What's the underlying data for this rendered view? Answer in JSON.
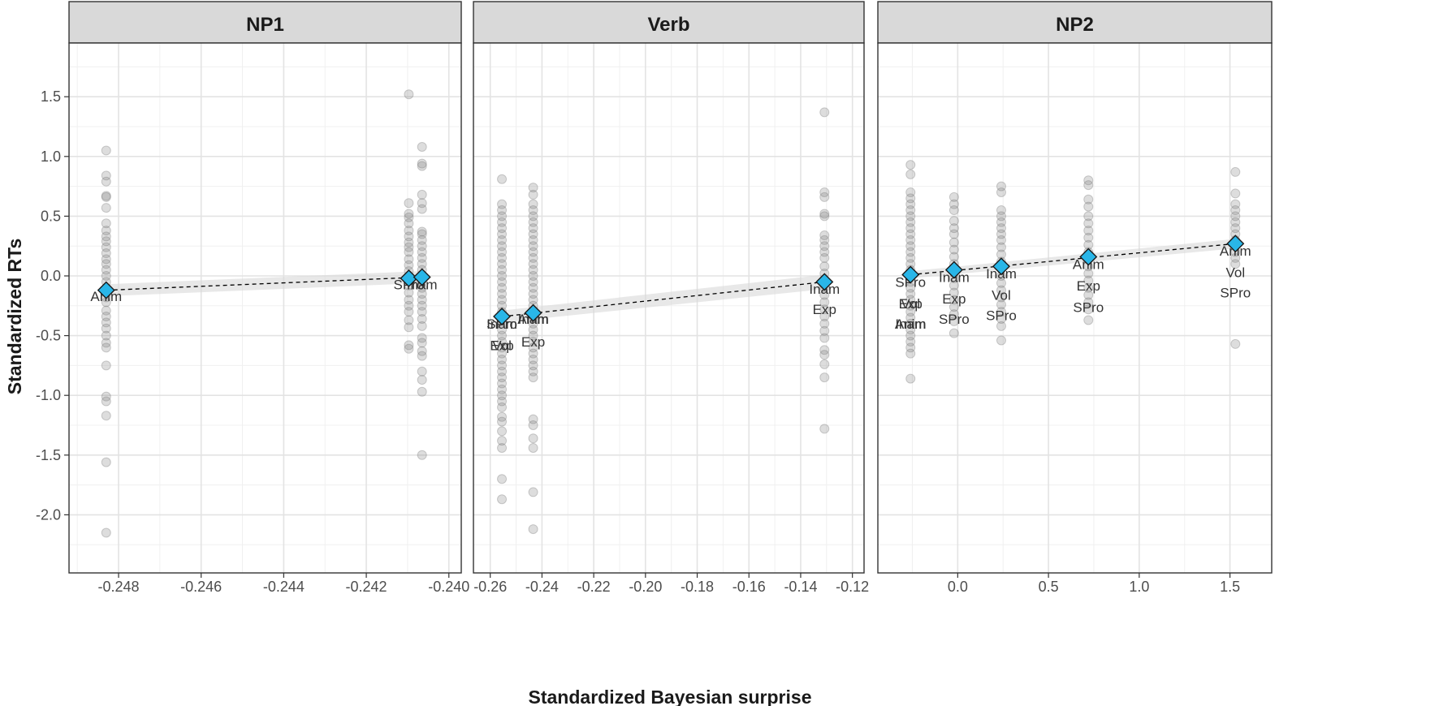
{
  "chart_data": {
    "type": "scatter",
    "ylabel": "Standardized RTs",
    "xlabel": "Standardized Bayesian surprise",
    "ylim": [
      -2.3,
      2.0
    ],
    "yticks": [
      1.5,
      1.0,
      0.5,
      0.0,
      -0.5,
      -1.0,
      -1.5,
      -2.0
    ],
    "ytick_labels": [
      "1.5",
      "1.0",
      "0.5",
      "0.0",
      "-0.5",
      "-1.0",
      "-1.5",
      "-2.0"
    ],
    "colors": {
      "mean_marker": "#29b6e8",
      "points": "#777777",
      "ribbon": "#d9d9d9",
      "strip": "#d9d9d9"
    },
    "panels": [
      {
        "title": "NP1",
        "xlim": [
          -0.2492,
          -0.2397
        ],
        "xticks": [
          -0.248,
          -0.246,
          -0.244,
          -0.242,
          -0.24
        ],
        "xtick_labels": [
          "-0.248",
          "-0.246",
          "-0.244",
          "-0.242",
          "-0.240"
        ],
        "fit": {
          "x": [
            -0.2483,
            -0.24065
          ],
          "y": [
            -0.12,
            -0.01
          ],
          "band": [
            0.05,
            0.05
          ]
        },
        "groups": [
          {
            "x": -0.2483,
            "mean": -0.12,
            "labels": [
              [
                "Anim",
                -0.17
              ]
            ],
            "points": [
              1.05,
              0.84,
              0.79,
              0.67,
              0.66,
              0.57,
              0.44,
              0.38,
              0.33,
              0.29,
              0.24,
              0.19,
              0.14,
              0.1,
              0.05,
              0.0,
              -0.05,
              -0.1,
              -0.18,
              -0.22,
              -0.29,
              -0.34,
              -0.39,
              -0.44,
              -0.5,
              -0.56,
              -0.6,
              -0.75,
              -1.01,
              -1.05,
              -1.17,
              -1.56,
              -2.15
            ]
          },
          {
            "x": -0.24097,
            "mean": -0.02,
            "labels": [
              [
                "SPro",
                -0.07
              ]
            ],
            "points": [
              1.52,
              0.61,
              0.52,
              0.49,
              0.44,
              0.38,
              0.33,
              0.28,
              0.24,
              0.2,
              0.14,
              0.09,
              0.04,
              -0.02,
              -0.08,
              -0.14,
              -0.2,
              -0.25,
              -0.3,
              -0.37,
              -0.43,
              -0.58,
              -0.61
            ]
          },
          {
            "x": -0.24065,
            "mean": -0.01,
            "labels": [
              [
                "Inam",
                -0.07
              ]
            ],
            "points": [
              1.08,
              0.94,
              0.92,
              0.68,
              0.61,
              0.56,
              0.37,
              0.35,
              0.3,
              0.25,
              0.2,
              0.15,
              0.1,
              0.05,
              0.0,
              -0.05,
              -0.1,
              -0.15,
              -0.2,
              -0.25,
              -0.3,
              -0.36,
              -0.42,
              -0.52,
              -0.56,
              -0.63,
              -0.67,
              -0.8,
              -0.87,
              -0.97,
              -1.5
            ]
          }
        ]
      },
      {
        "title": "Verb",
        "xlim": [
          -0.2665,
          -0.1155
        ],
        "xticks": [
          -0.26,
          -0.24,
          -0.22,
          -0.2,
          -0.18,
          -0.16,
          -0.14,
          -0.12
        ],
        "xtick_labels": [
          "-0.26",
          "-0.24",
          "-0.22",
          "-0.20",
          "-0.18",
          "-0.16",
          "-0.14",
          "-0.12"
        ],
        "fit": {
          "x": [
            -0.2555,
            -0.1308
          ],
          "y": [
            -0.34,
            -0.05
          ],
          "band": [
            0.05,
            0.06
          ]
        },
        "groups": [
          {
            "x": -0.2555,
            "mean": -0.34,
            "labels": [
              [
                "SPro",
                -0.4
              ],
              [
                "Inam",
                -0.4
              ],
              [
                "Exp",
                -0.58
              ],
              [
                "Vol",
                -0.58
              ]
            ],
            "points": [
              0.81,
              0.6,
              0.55,
              0.5,
              0.45,
              0.4,
              0.35,
              0.3,
              0.25,
              0.2,
              0.15,
              0.1,
              0.05,
              0.0,
              -0.05,
              -0.1,
              -0.15,
              -0.2,
              -0.25,
              -0.3,
              -0.35,
              -0.4,
              -0.45,
              -0.5,
              -0.55,
              -0.6,
              -0.65,
              -0.7,
              -0.75,
              -0.8,
              -0.85,
              -0.9,
              -0.95,
              -1.0,
              -1.05,
              -1.1,
              -1.18,
              -1.22,
              -1.3,
              -1.38,
              -1.44,
              -1.7,
              -1.87
            ]
          },
          {
            "x": -0.2434,
            "mean": -0.31,
            "labels": [
              [
                "Anim",
                -0.36
              ],
              [
                "Inam",
                -0.36
              ],
              [
                "Exp",
                -0.55
              ]
            ],
            "points": [
              0.74,
              0.68,
              0.6,
              0.55,
              0.5,
              0.45,
              0.4,
              0.35,
              0.3,
              0.25,
              0.2,
              0.15,
              0.1,
              0.05,
              0.0,
              -0.05,
              -0.1,
              -0.15,
              -0.2,
              -0.25,
              -0.3,
              -0.35,
              -0.4,
              -0.45,
              -0.5,
              -0.55,
              -0.6,
              -0.65,
              -0.7,
              -0.75,
              -0.8,
              -0.85,
              -1.2,
              -1.25,
              -1.36,
              -1.44,
              -1.81,
              -2.12
            ]
          },
          {
            "x": -0.1308,
            "mean": -0.05,
            "labels": [
              [
                "Inam",
                -0.11
              ],
              [
                "Exp",
                -0.28
              ]
            ],
            "points": [
              1.37,
              0.7,
              0.66,
              0.52,
              0.5,
              0.34,
              0.3,
              0.25,
              0.2,
              0.15,
              0.08,
              0.02,
              -0.04,
              -0.1,
              -0.16,
              -0.22,
              -0.28,
              -0.34,
              -0.4,
              -0.46,
              -0.52,
              -0.62,
              -0.66,
              -0.74,
              -0.85,
              -1.28
            ]
          }
        ]
      },
      {
        "title": "NP2",
        "xlim": [
          -0.44,
          1.73
        ],
        "xticks": [
          0.0,
          0.5,
          1.0,
          1.5
        ],
        "xtick_labels": [
          "0.0",
          "0.5",
          "1.0",
          "1.5"
        ],
        "fit": {
          "x": [
            -0.26,
            1.53
          ],
          "y": [
            0.01,
            0.27
          ],
          "band": [
            0.03,
            0.04
          ]
        },
        "groups": [
          {
            "x": -0.26,
            "mean": 0.01,
            "labels": [
              [
                "SPro",
                -0.05
              ],
              [
                "Exp",
                -0.23
              ],
              [
                "Vol",
                -0.23
              ],
              [
                "Anim",
                -0.4
              ],
              [
                "Inam",
                -0.4
              ]
            ],
            "points": [
              0.93,
              0.85,
              0.7,
              0.65,
              0.6,
              0.55,
              0.5,
              0.45,
              0.4,
              0.35,
              0.3,
              0.25,
              0.2,
              0.15,
              0.1,
              0.05,
              0.0,
              -0.05,
              -0.1,
              -0.15,
              -0.2,
              -0.25,
              -0.3,
              -0.35,
              -0.4,
              -0.45,
              -0.5,
              -0.55,
              -0.6,
              -0.65,
              -0.86
            ]
          },
          {
            "x": -0.02,
            "mean": 0.05,
            "labels": [
              [
                "Inam",
                -0.01
              ],
              [
                "Exp",
                -0.19
              ],
              [
                "SPro",
                -0.36
              ]
            ],
            "points": [
              0.66,
              0.6,
              0.55,
              0.46,
              0.4,
              0.35,
              0.28,
              0.22,
              0.16,
              0.1,
              0.04,
              -0.02,
              -0.08,
              -0.14,
              -0.2,
              -0.26,
              -0.32,
              -0.38,
              -0.48
            ]
          },
          {
            "x": 0.24,
            "mean": 0.08,
            "labels": [
              [
                "Inam",
                0.02
              ],
              [
                "Vol",
                -0.16
              ],
              [
                "SPro",
                -0.33
              ]
            ],
            "points": [
              0.75,
              0.7,
              0.55,
              0.5,
              0.45,
              0.4,
              0.35,
              0.3,
              0.24,
              0.18,
              0.12,
              0.06,
              0.0,
              -0.06,
              -0.12,
              -0.18,
              -0.24,
              -0.3,
              -0.36,
              -0.42,
              -0.54
            ]
          },
          {
            "x": 0.72,
            "mean": 0.16,
            "labels": [
              [
                "Anim",
                0.1
              ],
              [
                "Exp",
                -0.08
              ],
              [
                "SPro",
                -0.26
              ]
            ],
            "points": [
              0.8,
              0.76,
              0.64,
              0.58,
              0.5,
              0.44,
              0.38,
              0.32,
              0.26,
              0.2,
              0.14,
              0.08,
              0.02,
              -0.04,
              -0.1,
              -0.16,
              -0.22,
              -0.28,
              -0.37
            ]
          },
          {
            "x": 1.53,
            "mean": 0.27,
            "labels": [
              [
                "Anim",
                0.21
              ],
              [
                "Vol",
                0.03
              ],
              [
                "SPro",
                -0.14
              ]
            ],
            "points": [
              0.87,
              0.69,
              0.6,
              0.55,
              0.5,
              0.45,
              0.4,
              0.35,
              0.3,
              0.25,
              0.2,
              0.15,
              0.1,
              -0.57
            ]
          }
        ]
      }
    ]
  }
}
